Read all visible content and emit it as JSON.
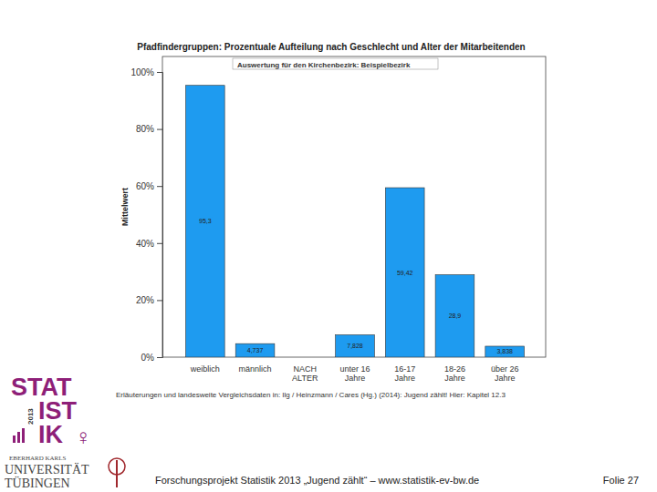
{
  "chart_data": {
    "type": "bar",
    "title": "Pfadfindergruppen: Prozentuale Aufteilung nach Geschlecht und Alter der Mitarbeitenden",
    "subtitle": "Auswertung für den Kirchenbezirk: Beispielbezirk",
    "y_label": "Mittelwert",
    "note": "Erläuterungen und landesweite Vergleichsdaten in: Ilg / Heinzmann / Cares (Hg.) (2014): Jugend zählt! Hier: Kapitel 12.3",
    "categories": [
      "weiblich",
      "männlich",
      "NACH ALTER",
      "unter 16 Jahre",
      "16-17 Jahre",
      "18-26 Jahre",
      "über 26 Jahre"
    ],
    "values": [
      95.3,
      4.737,
      null,
      7.828,
      59.42,
      28.9,
      3.838
    ],
    "value_labels": [
      "95,3",
      "4,737",
      null,
      "7,828",
      "59,42",
      "28,9",
      "3,838"
    ],
    "data_labels": true,
    "color": "#1e9bf0",
    "ylim": [
      0,
      100
    ],
    "yticks": [
      {
        "value": 0,
        "label": "0%"
      },
      {
        "value": 20,
        "label": "20%"
      },
      {
        "value": 40,
        "label": "40%"
      },
      {
        "value": 60,
        "label": "60%"
      },
      {
        "value": 80,
        "label": "80%"
      },
      {
        "value": 100,
        "label": "100%"
      }
    ],
    "grid": false
  },
  "page": {
    "footer": "Forschungsprojekt Statistik 2013 „Jugend zählt“ – www.statistik-ev-bw.de",
    "slide": "Folie 27",
    "logo": [
      "STAT",
      "IST",
      "IK",
      "2013",
      "♀"
    ],
    "university": [
      "EBERHARD KARLS",
      "UNIVERSITÄT",
      "TÜBINGEN"
    ]
  }
}
